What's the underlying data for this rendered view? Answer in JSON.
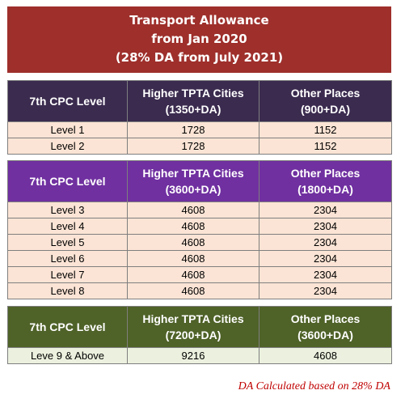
{
  "title": {
    "line1": "Transport Allowance",
    "line2": "from Jan 2020",
    "line3": "(28% DA from July 2021)"
  },
  "colors": {
    "title_bg": "#9e2f2b",
    "table1_header": "#3b2b4f",
    "table2_header": "#7030a0",
    "table3_header": "#4f6228",
    "row_bg_peach": "#fbe4d5",
    "row_bg_green": "#ebf1de",
    "note_text": "#c00000"
  },
  "tables": [
    {
      "header": {
        "col1": "7th CPC Level",
        "col2_line1": "Higher TPTA Cities",
        "col2_line2": "(1350+DA)",
        "col3_line1": "Other Places",
        "col3_line2": "(900+DA)"
      },
      "rows": [
        {
          "level": "Level 1",
          "higher": "1728",
          "other": "1152"
        },
        {
          "level": "Level 2",
          "higher": "1728",
          "other": "1152"
        }
      ]
    },
    {
      "header": {
        "col1": "7th CPC Level",
        "col2_line1": "Higher TPTA Cities",
        "col2_line2": "(3600+DA)",
        "col3_line1": "Other Places",
        "col3_line2": "(1800+DA)"
      },
      "rows": [
        {
          "level": "Level 3",
          "higher": "4608",
          "other": "2304"
        },
        {
          "level": "Level 4",
          "higher": "4608",
          "other": "2304"
        },
        {
          "level": "Level 5",
          "higher": "4608",
          "other": "2304"
        },
        {
          "level": "Level 6",
          "higher": "4608",
          "other": "2304"
        },
        {
          "level": "Level 7",
          "higher": "4608",
          "other": "2304"
        },
        {
          "level": "Level 8",
          "higher": "4608",
          "other": "2304"
        }
      ]
    },
    {
      "header": {
        "col1": "7th CPC Level",
        "col2_line1": "Higher TPTA Cities",
        "col2_line2": "(7200+DA)",
        "col3_line1": "Other Places",
        "col3_line2": "(3600+DA)"
      },
      "rows": [
        {
          "level": "Leve 9 & Above",
          "higher": "9216",
          "other": "4608"
        }
      ]
    }
  ],
  "note": "DA Calculated based on 28% DA"
}
